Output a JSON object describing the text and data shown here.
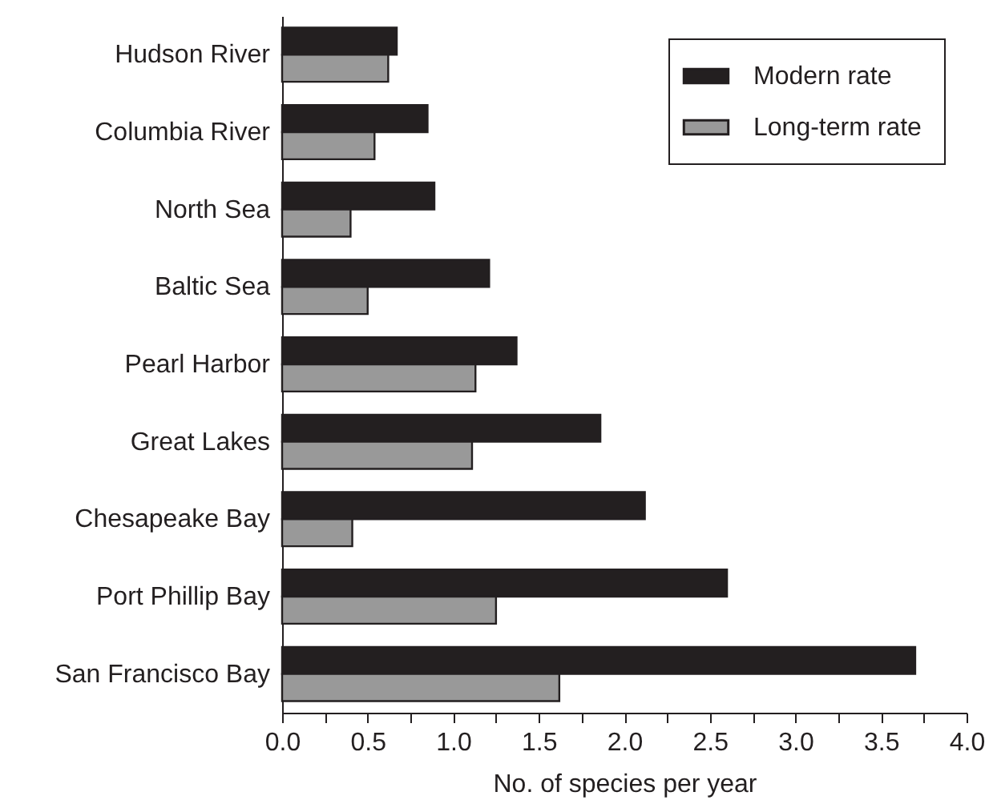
{
  "chart_data": {
    "type": "bar",
    "orientation": "horizontal",
    "xlabel": "No. of species per year",
    "categories": [
      "Hudson River",
      "Columbia River",
      "North Sea",
      "Baltic Sea",
      "Pearl Harbor",
      "Great Lakes",
      "Chesapeake Bay",
      "Port Phillip Bay",
      "San Francisco Bay"
    ],
    "series": [
      {
        "name": "Modern rate",
        "color": "#231f20",
        "values": [
          0.67,
          0.85,
          0.89,
          1.21,
          1.37,
          1.86,
          2.12,
          2.6,
          3.7
        ]
      },
      {
        "name": "Long-term rate",
        "color": "#999999",
        "values": [
          0.62,
          0.54,
          0.4,
          0.5,
          1.13,
          1.11,
          0.41,
          1.25,
          1.62
        ]
      }
    ],
    "xlim": [
      0,
      4
    ],
    "xticks": [
      {
        "value": 0,
        "label": "0.0"
      },
      {
        "value": 0.25,
        "label": null
      },
      {
        "value": 0.5,
        "label": "0.5"
      },
      {
        "value": 0.75,
        "label": null
      },
      {
        "value": 1,
        "label": "1.0"
      },
      {
        "value": 1.25,
        "label": null
      },
      {
        "value": 1.5,
        "label": "1.5"
      },
      {
        "value": 1.75,
        "label": null
      },
      {
        "value": 2,
        "label": "2.0"
      },
      {
        "value": 2.25,
        "label": null
      },
      {
        "value": 2.5,
        "label": "2.5"
      },
      {
        "value": 2.75,
        "label": null
      },
      {
        "value": 3,
        "label": "3.0"
      },
      {
        "value": 3.25,
        "label": null
      },
      {
        "value": 3.5,
        "label": "3.5"
      },
      {
        "value": 3.75,
        "label": null
      },
      {
        "value": 4,
        "label": "4.0"
      }
    ],
    "legend": "top right",
    "grid": false
  }
}
